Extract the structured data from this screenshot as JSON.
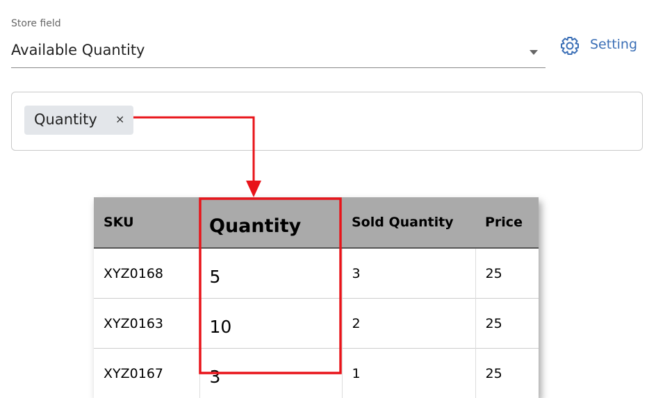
{
  "field": {
    "label": "Store field",
    "value": "Available Quantity"
  },
  "setting_button": "Setting",
  "chip": {
    "label": "Quantity",
    "remove": "×"
  },
  "table": {
    "headers": [
      "SKU",
      "Quantity",
      "Sold Quantity",
      "Price"
    ],
    "rows": [
      [
        "XYZ0168",
        5,
        3,
        25
      ],
      [
        "XYZ0163",
        10,
        2,
        25
      ],
      [
        "XYZ0167",
        3,
        1,
        25
      ]
    ]
  }
}
